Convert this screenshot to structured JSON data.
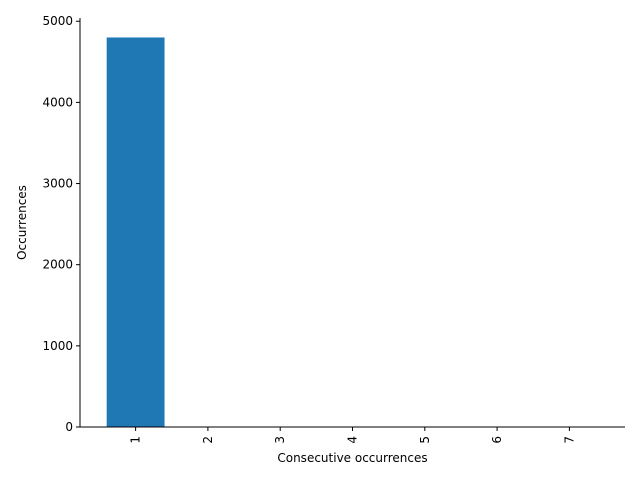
{
  "chart_data": {
    "type": "bar",
    "title": "",
    "xlabel": "Consecutive occurrences",
    "ylabel": "Occurrences",
    "categories": [
      "1",
      "2",
      "3",
      "4",
      "5",
      "6",
      "7"
    ],
    "values": [
      4800,
      0,
      0,
      0,
      0,
      0,
      0
    ],
    "ylim": [
      0,
      5040
    ],
    "yticks": [
      0,
      1000,
      2000,
      3000,
      4000,
      5000
    ],
    "grid": false,
    "legend": "none",
    "bar_color": "#1f77b4",
    "spines": [
      "left",
      "bottom"
    ]
  }
}
